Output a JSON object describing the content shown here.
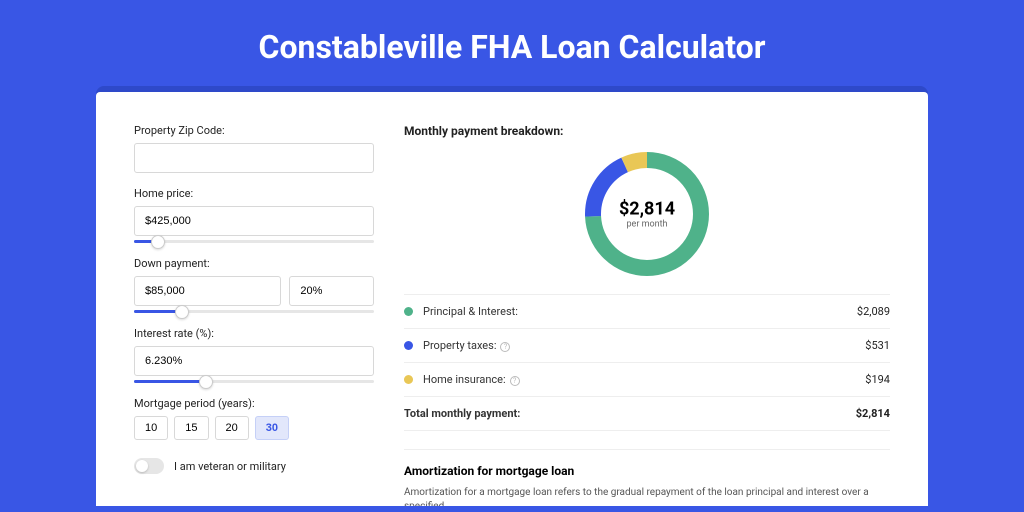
{
  "title": "Constableville FHA Loan Calculator",
  "form": {
    "zip": {
      "label": "Property Zip Code:",
      "value": ""
    },
    "homePrice": {
      "label": "Home price:",
      "value": "$425,000",
      "sliderPct": 10
    },
    "downPayment": {
      "label": "Down payment:",
      "amount": "$85,000",
      "percent": "20%",
      "sliderPct": 20
    },
    "interestRate": {
      "label": "Interest rate (%):",
      "value": "6.230%",
      "sliderPct": 30
    },
    "period": {
      "label": "Mortgage period (years):",
      "options": [
        "10",
        "15",
        "20",
        "30"
      ],
      "selected": "30"
    },
    "veteran": {
      "label": "I am veteran or military",
      "checked": false
    }
  },
  "breakdown": {
    "title": "Monthly payment breakdown:",
    "donut": {
      "amount": "$2,814",
      "sub": "per month",
      "segments": [
        {
          "name": "principal-interest",
          "color": "#4fb28a",
          "value": 2089
        },
        {
          "name": "property-taxes",
          "color": "#3956e5",
          "value": 531
        },
        {
          "name": "home-insurance",
          "color": "#e9c756",
          "value": 194
        }
      ],
      "total": 2814,
      "thickness": 16,
      "radius": 62
    },
    "legend": [
      {
        "label": "Principal & Interest:",
        "value": "$2,089",
        "color": "#4fb28a",
        "info": false
      },
      {
        "label": "Property taxes:",
        "value": "$531",
        "color": "#3956e5",
        "info": true
      },
      {
        "label": "Home insurance:",
        "value": "$194",
        "color": "#e9c756",
        "info": true
      }
    ],
    "totalRow": {
      "label": "Total monthly payment:",
      "value": "$2,814"
    }
  },
  "amortization": {
    "title": "Amortization for mortgage loan",
    "text": "Amortization for a mortgage loan refers to the gradual repayment of the loan principal and interest over a specified"
  },
  "colors": {
    "pageBg": "#3956e5",
    "cardShadow": "#2e49c9",
    "primary": "#3956e5"
  }
}
